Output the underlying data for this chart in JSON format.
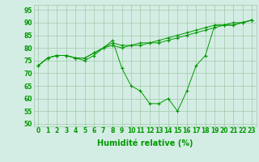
{
  "title": "",
  "xlabel": "Humidité relative (%)",
  "ylabel": "",
  "background_color": "#d4ede4",
  "grid_color": "#a0c8a8",
  "line_color": "#009900",
  "xlim": [
    -0.5,
    23.5
  ],
  "ylim": [
    49,
    97
  ],
  "yticks": [
    50,
    55,
    60,
    65,
    70,
    75,
    80,
    85,
    90,
    95
  ],
  "xtick_labels": [
    "0",
    "1",
    "2",
    "3",
    "4",
    "5",
    "6",
    "7",
    "8",
    "9",
    "10",
    "11",
    "12",
    "13",
    "14",
    "15",
    "16",
    "17",
    "18",
    "19",
    "20",
    "21",
    "22",
    "23"
  ],
  "series": [
    [
      73,
      76,
      77,
      77,
      76,
      75,
      77,
      80,
      83,
      72,
      65,
      63,
      58,
      58,
      60,
      55,
      63,
      73,
      77,
      89,
      89,
      89,
      90,
      91
    ],
    [
      73,
      76,
      77,
      77,
      76,
      76,
      78,
      80,
      81,
      80,
      81,
      81,
      82,
      82,
      83,
      84,
      85,
      86,
      87,
      88,
      89,
      89,
      90,
      91
    ],
    [
      73,
      76,
      77,
      77,
      76,
      76,
      78,
      80,
      82,
      81,
      81,
      82,
      82,
      83,
      84,
      85,
      86,
      87,
      88,
      89,
      89,
      90,
      90,
      91
    ]
  ],
  "xlabel_fontsize": 7,
  "tick_fontsize": 5.5
}
